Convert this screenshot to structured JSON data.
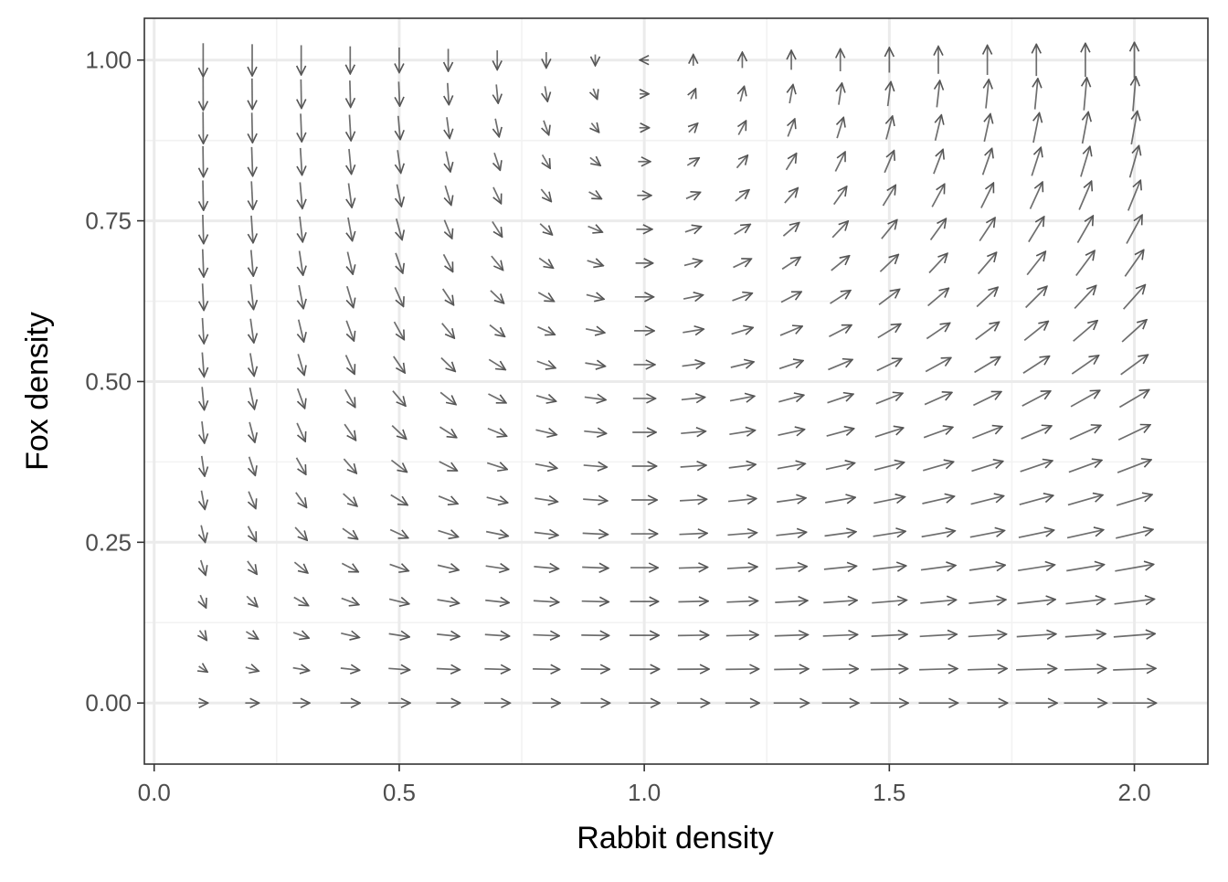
{
  "chart_data": {
    "type": "vector_field",
    "xlabel": "Rabbit density",
    "ylabel": "Fox density",
    "xlim": [
      -0.02,
      2.15
    ],
    "ylim": [
      -0.095,
      1.065
    ],
    "x_ticks": [
      {
        "value": 0.0,
        "label": "0.0"
      },
      {
        "value": 0.5,
        "label": "0.5"
      },
      {
        "value": 1.0,
        "label": "1.0"
      },
      {
        "value": 1.5,
        "label": "1.5"
      },
      {
        "value": 2.0,
        "label": "2.0"
      }
    ],
    "y_ticks": [
      {
        "value": 0.0,
        "label": "0.00"
      },
      {
        "value": 0.25,
        "label": "0.25"
      },
      {
        "value": 0.5,
        "label": "0.50"
      },
      {
        "value": 0.75,
        "label": "0.75"
      },
      {
        "value": 1.0,
        "label": "1.00"
      }
    ],
    "grid": true,
    "grid_x": {
      "start": 0.1,
      "step": 0.1,
      "count": 20
    },
    "grid_y": {
      "start": 0.0,
      "step": 0.0526316,
      "count": 20
    },
    "field": {
      "model": "Lotka-Volterra predator-prey",
      "dx": "x*(1 - y)",
      "dy": "y*(x - 1)"
    },
    "colors": {
      "arrow": "#555555",
      "panel_border": "#333333",
      "grid_major": "#ebebeb",
      "grid_minor": "#f2f2f2"
    }
  }
}
